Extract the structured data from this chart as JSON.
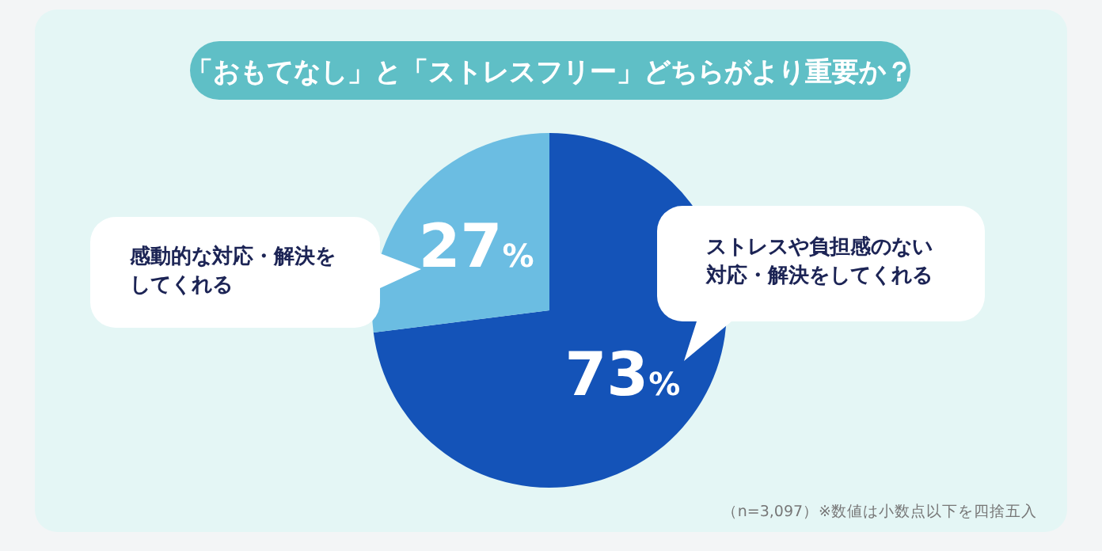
{
  "chart_data": {
    "type": "pie",
    "title": "「おもてなし」と「ストレスフリー」どちらがより重要か？",
    "categories": [
      "ストレスや負担感のない対応・解決をしてくれる",
      "感動的な対応・解決をしてくれる"
    ],
    "values": [
      73,
      27
    ],
    "colors": [
      "#1453b8",
      "#6bbde2"
    ],
    "value_labels": [
      "73%",
      "27%"
    ],
    "annotations": [
      "（n=3,097）※数値は小数点以下を四捨五入"
    ]
  }
}
